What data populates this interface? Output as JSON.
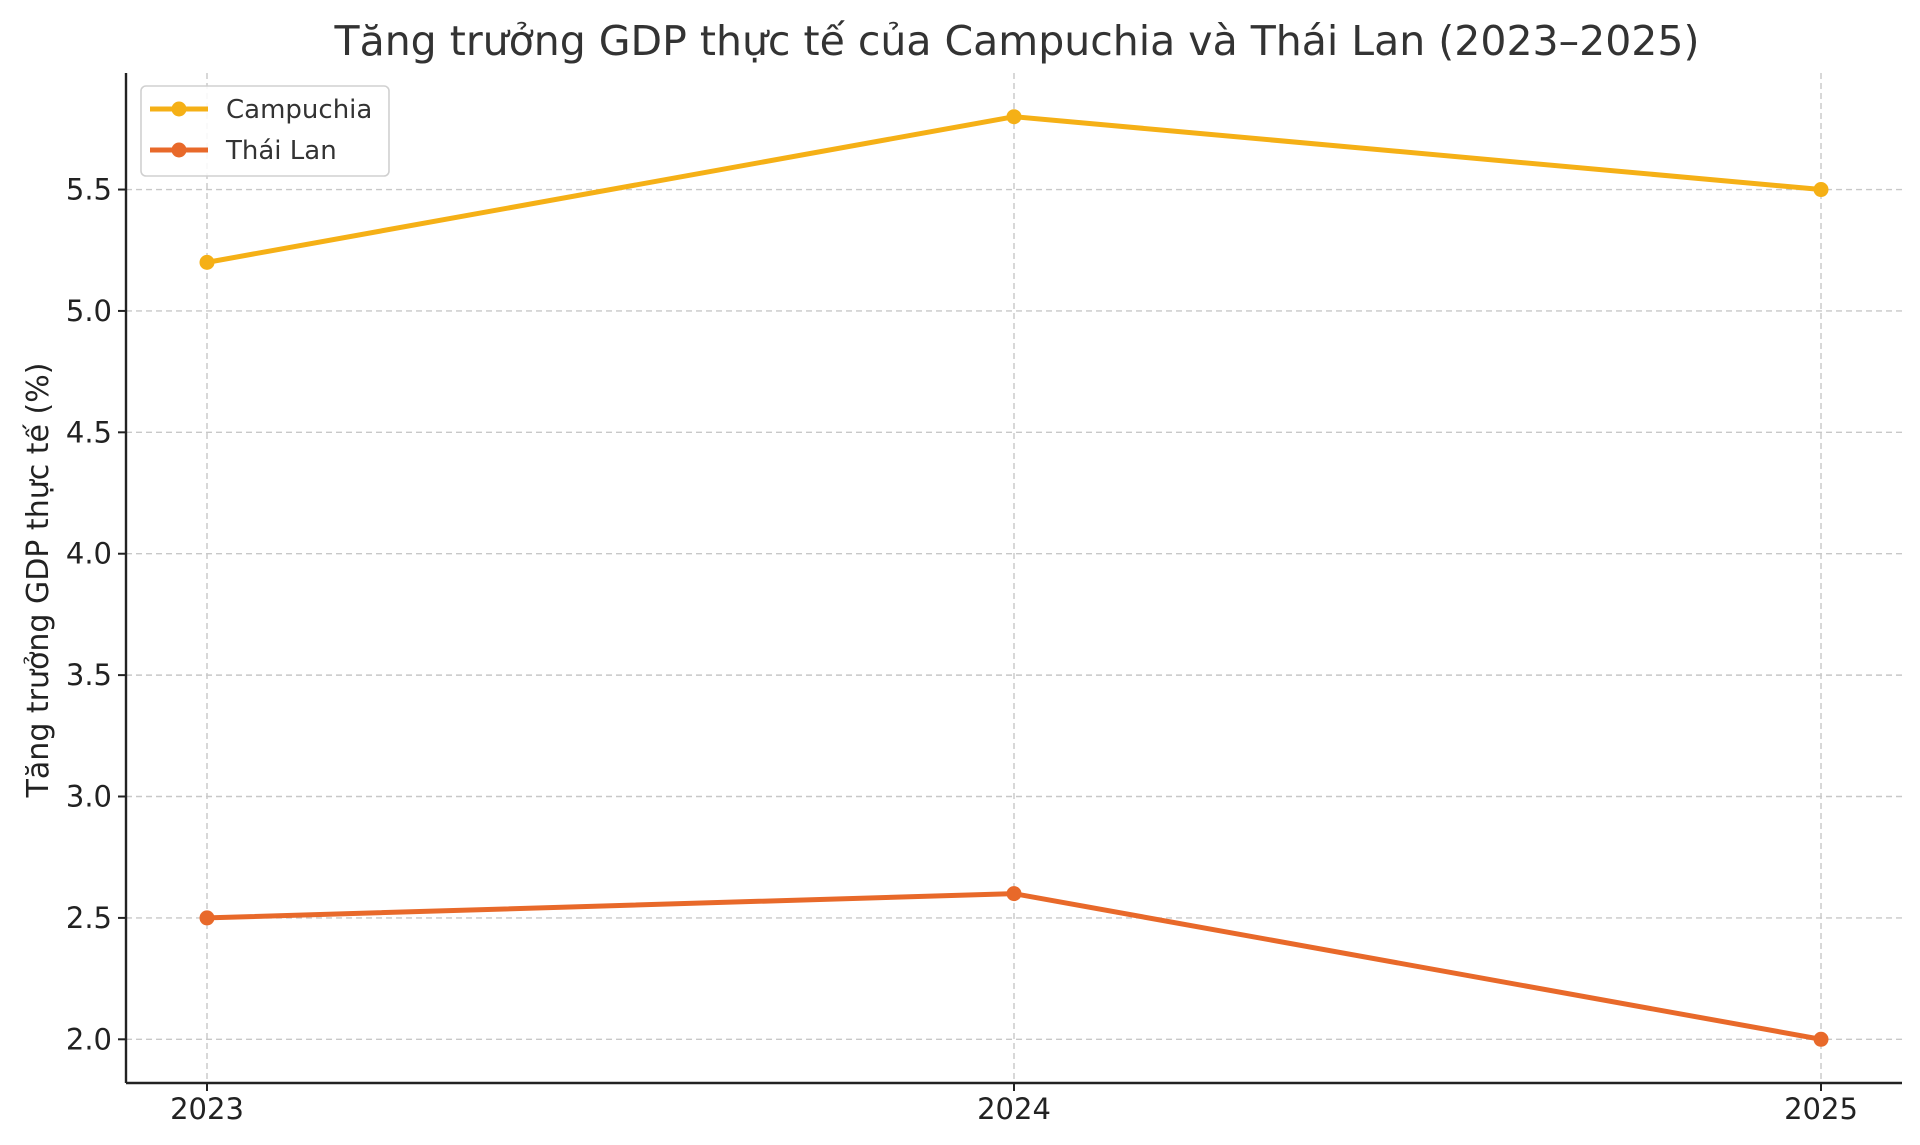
{
  "chart_data": {
    "type": "line",
    "title": "Tăng trưởng GDP thực tế của Campuchia và Thái Lan (2023–2025)",
    "xlabel": "",
    "ylabel": "Tăng trưởng GDP thực tế (%)",
    "x": [
      "2023",
      "2024",
      "2025"
    ],
    "ylim": [
      1.82,
      5.98
    ],
    "yticks": [
      "2.0",
      "2.5",
      "3.0",
      "3.5",
      "4.0",
      "4.5",
      "5.0",
      "5.5"
    ],
    "grid": true,
    "legend_position": "top-left",
    "series": [
      {
        "name": "Campuchia",
        "values": [
          5.2,
          5.8,
          5.5
        ],
        "color": "#F5B016"
      },
      {
        "name": "Thái Lan",
        "values": [
          2.5,
          2.6,
          2.0
        ],
        "color": "#E8692A"
      }
    ]
  }
}
